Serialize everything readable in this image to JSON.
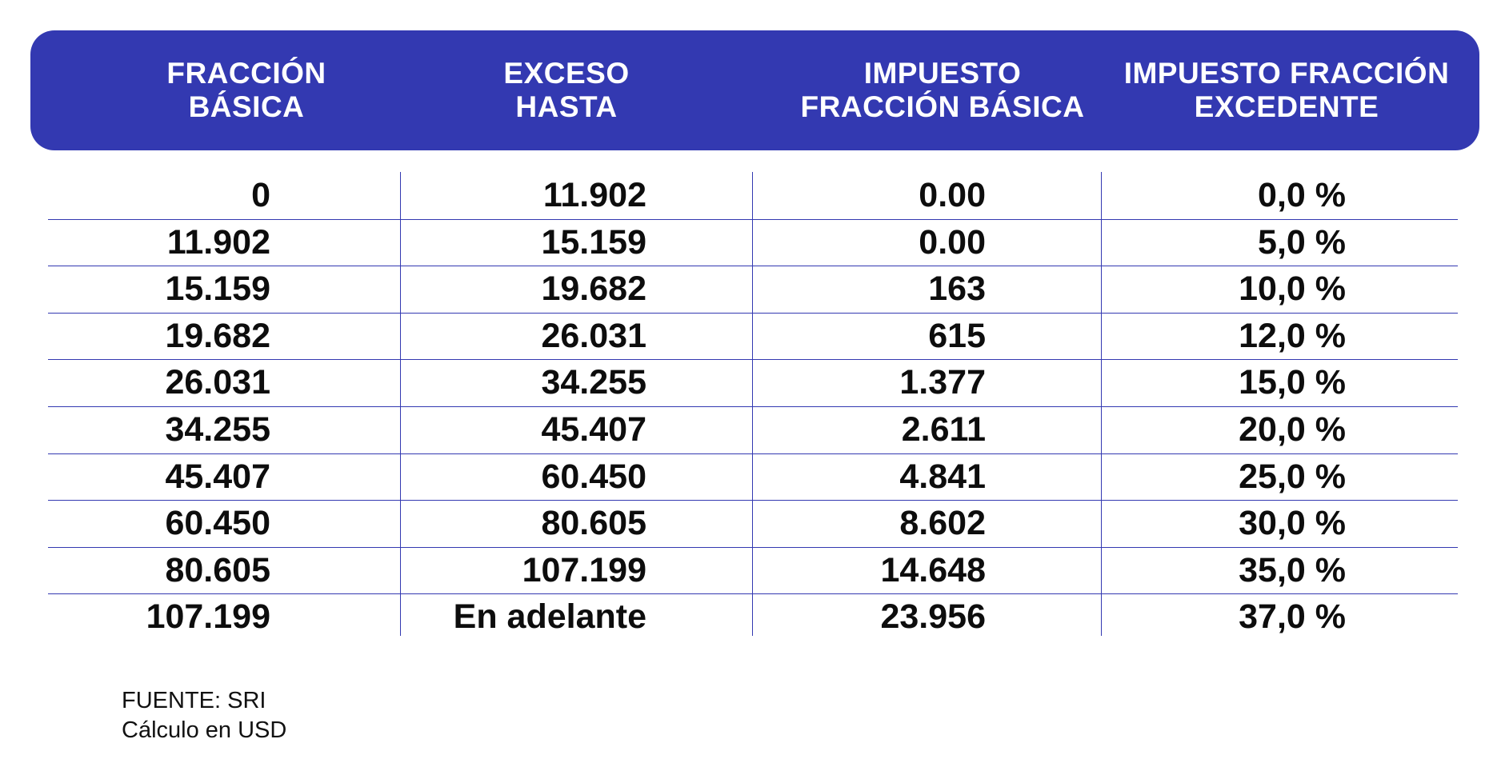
{
  "table": {
    "headers": [
      "FRACCIÓN\nBÁSICA",
      "EXCESO\nHASTA",
      "IMPUESTO\nFRACCIÓN BÁSICA",
      "IMPUESTO FRACCIÓN\nEXCEDENTE"
    ],
    "rows": [
      [
        "0",
        "11.902",
        "0.00",
        "0,0 %"
      ],
      [
        "11.902",
        "15.159",
        "0.00",
        "5,0 %"
      ],
      [
        "15.159",
        "19.682",
        "163",
        "10,0 %"
      ],
      [
        "19.682",
        "26.031",
        "615",
        "12,0 %"
      ],
      [
        "26.031",
        "34.255",
        "1.377",
        "15,0 %"
      ],
      [
        "34.255",
        "45.407",
        "2.611",
        "20,0 %"
      ],
      [
        "45.407",
        "60.450",
        "4.841",
        "25,0 %"
      ],
      [
        "60.450",
        "80.605",
        "8.602",
        "30,0 %"
      ],
      [
        "80.605",
        "107.199",
        "14.648",
        "35,0 %"
      ],
      [
        "107.199",
        "En adelante",
        "23.956",
        "37,0 %"
      ]
    ]
  },
  "footer": {
    "source": "FUENTE: SRI",
    "note": "Cálculo en USD"
  },
  "colors": {
    "header_background": "#3339b1",
    "header_text": "#ffffff",
    "grid_lines": "#3339b1",
    "body_text": "#0d0d0d"
  }
}
